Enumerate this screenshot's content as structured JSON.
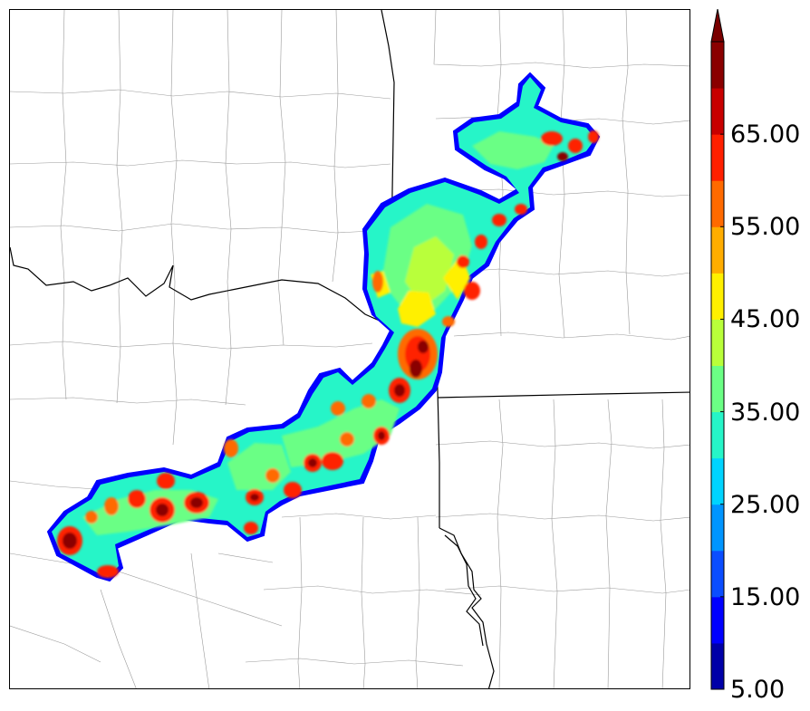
{
  "colorbar": {
    "colors": [
      "#0000a8",
      "#0000ff",
      "#0a4dff",
      "#0095ff",
      "#00d4ff",
      "#26f5c8",
      "#6bff85",
      "#b9ff3a",
      "#fff000",
      "#ffad00",
      "#ff6a00",
      "#ff2000",
      "#c80000",
      "#8a0000"
    ],
    "extend_color": "#7a0000",
    "tick_labels": [
      "65.00",
      "55.00",
      "45.00",
      "35.00",
      "25.00",
      "15.00",
      "5.00"
    ]
  }
}
